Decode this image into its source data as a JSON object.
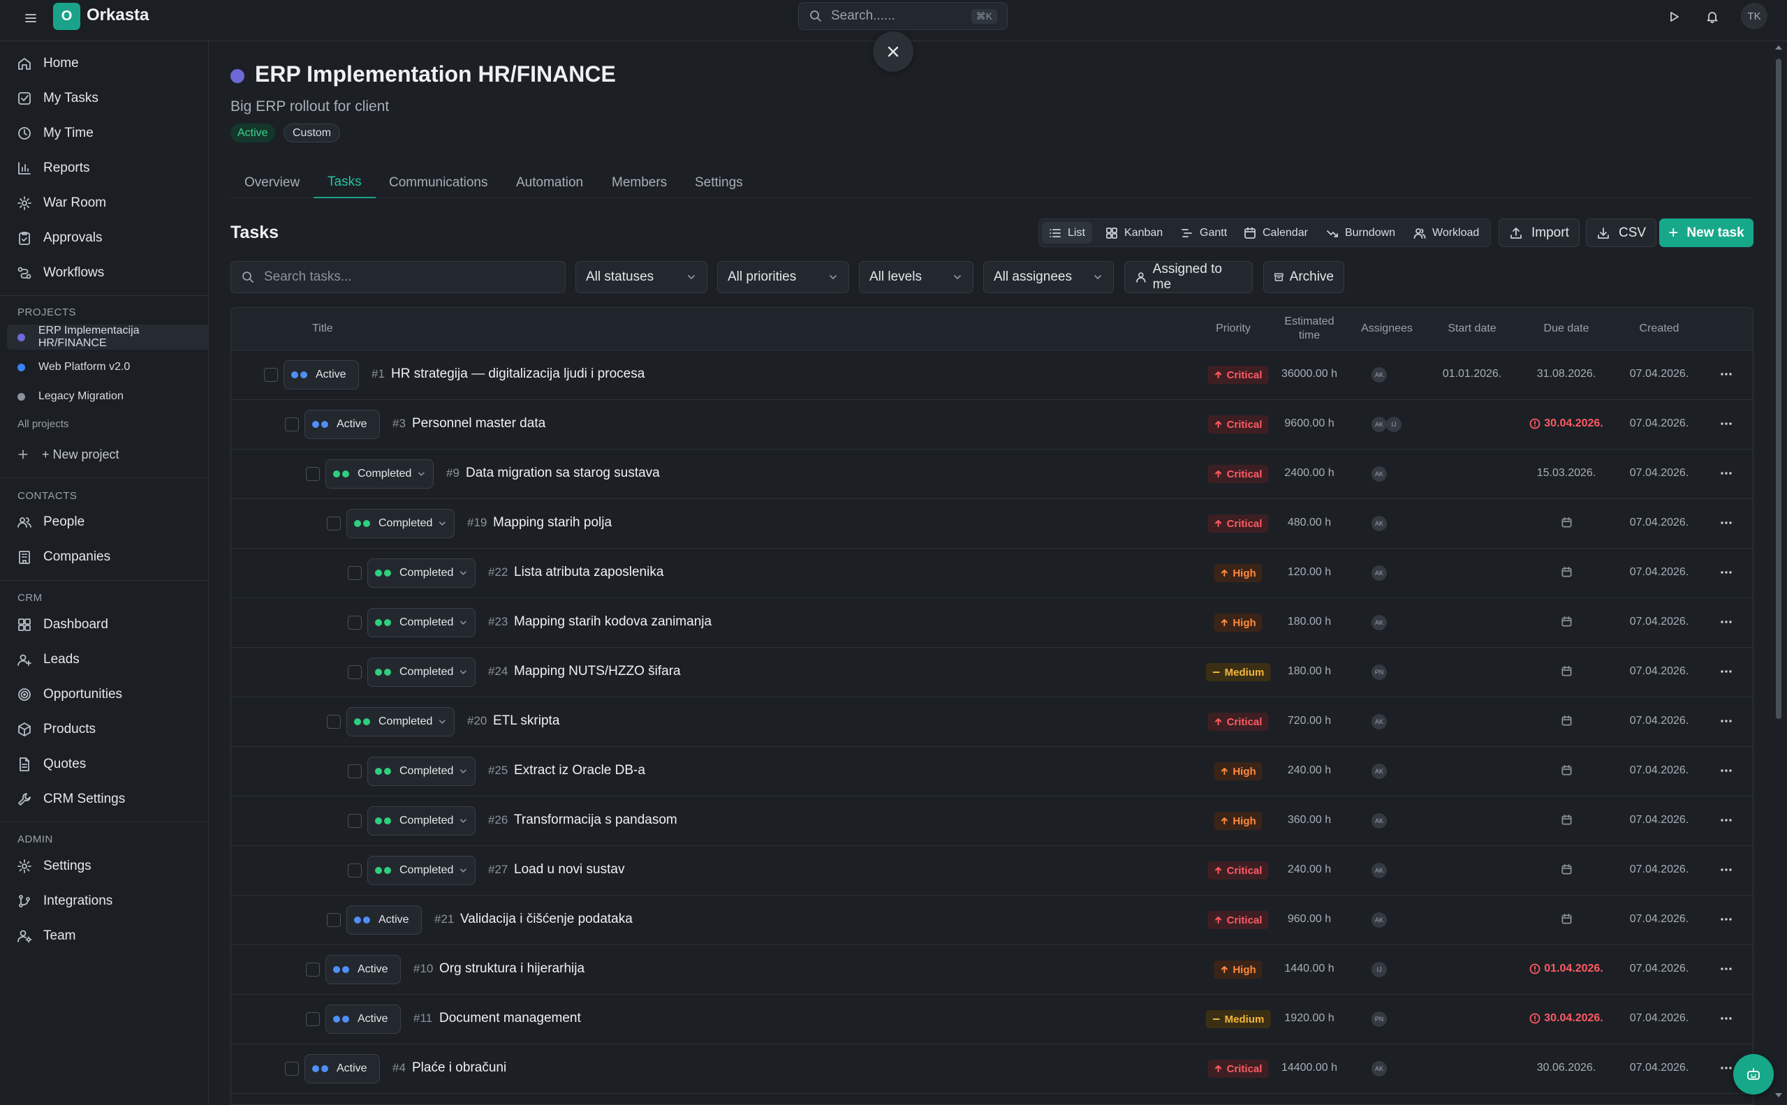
{
  "app": {
    "name": "Orkasta",
    "logo_letter": "O",
    "user_initials": "TK"
  },
  "search": {
    "placeholder": "Search......",
    "shortcut": "⌘K"
  },
  "sidebar": {
    "nav": [
      {
        "label": "Home",
        "icon": "home-icon"
      },
      {
        "label": "My Tasks",
        "icon": "checkbox-icon"
      },
      {
        "label": "My Time",
        "icon": "clock-icon"
      },
      {
        "label": "Reports",
        "icon": "bar-chart-icon"
      },
      {
        "label": "War Room",
        "icon": "war-room-icon"
      },
      {
        "label": "Approvals",
        "icon": "clipboard-check-icon"
      },
      {
        "label": "Workflows",
        "icon": "workflow-icon"
      }
    ],
    "projects_label": "PROJECTS",
    "projects": [
      {
        "label": "ERP Implementacija HR/FINANCE",
        "color": "#6d6ad8",
        "active": true
      },
      {
        "label": "Web Platform v2.0",
        "color": "#3b82f6",
        "active": false
      },
      {
        "label": "Legacy Migration",
        "color": "#8b929c",
        "active": false
      }
    ],
    "all_projects": "All projects",
    "new_project": "+ New project",
    "contacts_label": "CONTACTS",
    "contacts": [
      {
        "label": "People",
        "icon": "people-icon"
      },
      {
        "label": "Companies",
        "icon": "building-icon"
      }
    ],
    "crm_label": "CRM",
    "crm": [
      {
        "label": "Dashboard",
        "icon": "dashboard-icon"
      },
      {
        "label": "Leads",
        "icon": "user-plus-icon"
      },
      {
        "label": "Opportunities",
        "icon": "target-icon"
      },
      {
        "label": "Products",
        "icon": "package-icon"
      },
      {
        "label": "Quotes",
        "icon": "document-icon"
      },
      {
        "label": "CRM Settings",
        "icon": "wrench-icon"
      }
    ],
    "admin_label": "ADMIN",
    "admin": [
      {
        "label": "Settings",
        "icon": "gear-icon"
      },
      {
        "label": "Integrations",
        "icon": "git-branch-icon"
      },
      {
        "label": "Team",
        "icon": "user-gear-icon"
      }
    ]
  },
  "project": {
    "title": "ERP Implementation HR/FINANCE",
    "subtitle": "Big ERP rollout for client",
    "status_badge": "Active",
    "type_badge": "Custom",
    "color": "#6d6ad8"
  },
  "tabs": [
    "Overview",
    "Tasks",
    "Communications",
    "Automation",
    "Members",
    "Settings"
  ],
  "active_tab": "Tasks",
  "tasks_heading": "Tasks",
  "views": [
    "List",
    "Kanban",
    "Gantt",
    "Calendar",
    "Burndown",
    "Workload"
  ],
  "active_view": "List",
  "actions": {
    "import": "Import",
    "csv": "CSV",
    "new_task": "New task"
  },
  "filters": {
    "search_placeholder": "Search tasks...",
    "statuses": "All statuses",
    "priorities": "All priorities",
    "levels": "All levels",
    "assignees": "All assignees",
    "assigned_to_me": "Assigned to me",
    "archive": "Archive"
  },
  "columns": {
    "title": "Title",
    "priority": "Priority",
    "estimated_time": "Estimated time",
    "assignees": "Assignees",
    "start_date": "Start date",
    "due_date": "Due date",
    "created": "Created"
  },
  "colors": {
    "accent": "#1aa38a",
    "critical": "#ff5a63",
    "high": "#ff8a3d",
    "medium": "#f5b73a",
    "active_dot": "#4f8ff7",
    "completed_dot": "#2fcf7f"
  },
  "tasks": [
    {
      "level": 0,
      "status": "Active",
      "num": "#1",
      "title": "HR strategija — digitalizacija ljudi i procesa",
      "priority": "Critical",
      "estimate": "36000.00 h",
      "assignees": [
        "AK"
      ],
      "start": "01.01.2026.",
      "due": "31.08.2026.",
      "due_overdue": false,
      "created": "07.04.2026."
    },
    {
      "level": 1,
      "status": "Active",
      "num": "#3",
      "title": "Personnel master data",
      "priority": "Critical",
      "estimate": "9600.00 h",
      "assignees": [
        "AK",
        "IJ"
      ],
      "start": "",
      "due": "30.04.2026.",
      "due_overdue": true,
      "created": "07.04.2026."
    },
    {
      "level": 2,
      "status": "Completed",
      "num": "#9",
      "title": "Data migration sa starog sustava",
      "priority": "Critical",
      "estimate": "2400.00 h",
      "assignees": [
        "AK"
      ],
      "start": "",
      "due": "15.03.2026.",
      "due_overdue": false,
      "created": "07.04.2026."
    },
    {
      "level": 3,
      "status": "Completed",
      "num": "#19",
      "title": "Mapping starih polja",
      "priority": "Critical",
      "estimate": "480.00 h",
      "assignees": [
        "AK"
      ],
      "start": "",
      "due": "",
      "due_overdue": false,
      "created": "07.04.2026."
    },
    {
      "level": 4,
      "status": "Completed",
      "num": "#22",
      "title": "Lista atributa zaposlenika",
      "priority": "High",
      "estimate": "120.00 h",
      "assignees": [
        "AK"
      ],
      "start": "",
      "due": "",
      "due_overdue": false,
      "created": "07.04.2026."
    },
    {
      "level": 4,
      "status": "Completed",
      "num": "#23",
      "title": "Mapping starih kodova zanimanja",
      "priority": "High",
      "estimate": "180.00 h",
      "assignees": [
        "AK"
      ],
      "start": "",
      "due": "",
      "due_overdue": false,
      "created": "07.04.2026."
    },
    {
      "level": 4,
      "status": "Completed",
      "num": "#24",
      "title": "Mapping NUTS/HZZO šifara",
      "priority": "Medium",
      "estimate": "180.00 h",
      "assignees": [
        "PN"
      ],
      "start": "",
      "due": "",
      "due_overdue": false,
      "created": "07.04.2026."
    },
    {
      "level": 3,
      "status": "Completed",
      "num": "#20",
      "title": "ETL skripta",
      "priority": "Critical",
      "estimate": "720.00 h",
      "assignees": [
        "AK"
      ],
      "start": "",
      "due": "",
      "due_overdue": false,
      "created": "07.04.2026."
    },
    {
      "level": 4,
      "status": "Completed",
      "num": "#25",
      "title": "Extract iz Oracle DB-a",
      "priority": "High",
      "estimate": "240.00 h",
      "assignees": [
        "AK"
      ],
      "start": "",
      "due": "",
      "due_overdue": false,
      "created": "07.04.2026."
    },
    {
      "level": 4,
      "status": "Completed",
      "num": "#26",
      "title": "Transformacija s pandasom",
      "priority": "High",
      "estimate": "360.00 h",
      "assignees": [
        "AK"
      ],
      "start": "",
      "due": "",
      "due_overdue": false,
      "created": "07.04.2026."
    },
    {
      "level": 4,
      "status": "Completed",
      "num": "#27",
      "title": "Load u novi sustav",
      "priority": "Critical",
      "estimate": "240.00 h",
      "assignees": [
        "AK"
      ],
      "start": "",
      "due": "",
      "due_overdue": false,
      "created": "07.04.2026."
    },
    {
      "level": 3,
      "status": "Active",
      "num": "#21",
      "title": "Validacija i čišćenje podataka",
      "priority": "Critical",
      "estimate": "960.00 h",
      "assignees": [
        "AK"
      ],
      "start": "",
      "due": "",
      "due_overdue": false,
      "created": "07.04.2026."
    },
    {
      "level": 2,
      "status": "Active",
      "num": "#10",
      "title": "Org struktura i hijerarhija",
      "priority": "High",
      "estimate": "1440.00 h",
      "assignees": [
        "IJ"
      ],
      "start": "",
      "due": "01.04.2026.",
      "due_overdue": true,
      "created": "07.04.2026."
    },
    {
      "level": 2,
      "status": "Active",
      "num": "#11",
      "title": "Document management",
      "priority": "Medium",
      "estimate": "1920.00 h",
      "assignees": [
        "PN"
      ],
      "start": "",
      "due": "30.04.2026.",
      "due_overdue": true,
      "created": "07.04.2026."
    },
    {
      "level": 1,
      "status": "Active",
      "num": "#4",
      "title": "Plaće i obračuni",
      "priority": "Critical",
      "estimate": "14400.00 h",
      "assignees": [
        "AK"
      ],
      "start": "",
      "due": "30.06.2026.",
      "due_overdue": false,
      "created": "07.04.2026."
    }
  ]
}
